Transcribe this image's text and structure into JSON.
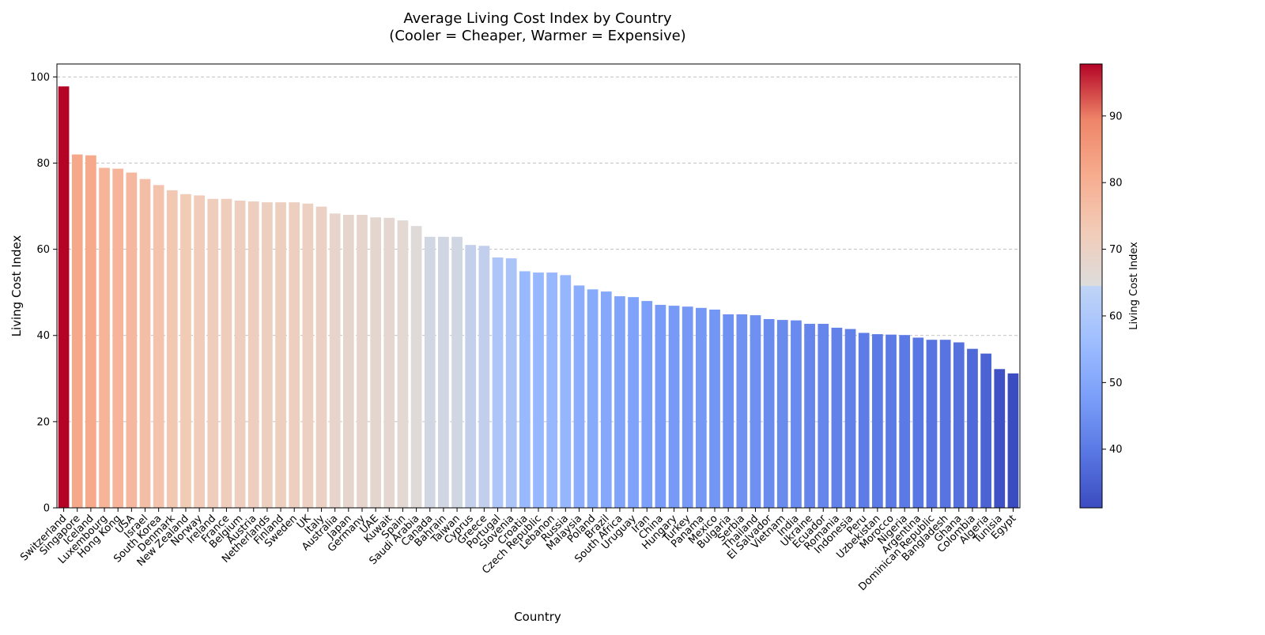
{
  "colors": {
    "cool": "#3b4cc0",
    "mid": "#dddcdc",
    "warm": "#b40426",
    "grid": "#b0b0b0"
  },
  "chart_data": {
    "type": "bar",
    "title_line1": "Average Living Cost Index by Country",
    "title_line2": "(Cooler = Cheaper, Warmer = Expensive)",
    "xlabel": "Country",
    "ylabel": "Living Cost Index",
    "colorbar_label": "Living Cost Index",
    "ylim": [
      0,
      103
    ],
    "yticks": [
      0,
      20,
      40,
      60,
      80,
      100
    ],
    "colorbar_range": [
      31.2,
      97.8
    ],
    "colorbar_ticks": [
      40,
      50,
      60,
      70,
      80,
      90
    ],
    "grid": "y-dashed",
    "categories": [
      "Switzerland",
      "Singapore",
      "Iceland",
      "Luxembourg",
      "Hong Kong",
      "USA",
      "Israel",
      "South Korea",
      "Denmark",
      "New Zealand",
      "Norway",
      "Ireland",
      "France",
      "Belgium",
      "Austria",
      "Netherlands",
      "Finland",
      "Sweden",
      "UK",
      "Italy",
      "Australia",
      "Japan",
      "Germany",
      "UAE",
      "Kuwait",
      "Spain",
      "Saudi Arabia",
      "Canada",
      "Bahrain",
      "Taiwan",
      "Cyprus",
      "Greece",
      "Portugal",
      "Slovenia",
      "Croatia",
      "Czech Republic",
      "Lebanon",
      "Russia",
      "Malaysia",
      "Poland",
      "Brazil",
      "South Africa",
      "Uruguay",
      "Iran",
      "China",
      "Hungary",
      "Turkey",
      "Panama",
      "Mexico",
      "Bulgaria",
      "Serbia",
      "Thailand",
      "El Salvador",
      "Vietnam",
      "India",
      "Ukraine",
      "Ecuador",
      "Romania",
      "Indonesia",
      "Peru",
      "Uzbekistan",
      "Morocco",
      "Nigeria",
      "Argentina",
      "Dominican Republic",
      "Bangladesh",
      "Ghana",
      "Colombia",
      "Algeria",
      "Tunisia",
      "Egypt"
    ],
    "values": [
      97.8,
      82.0,
      81.8,
      78.9,
      78.7,
      77.8,
      76.3,
      74.9,
      73.7,
      72.8,
      72.5,
      71.7,
      71.7,
      71.3,
      71.1,
      70.9,
      70.9,
      70.9,
      70.6,
      69.9,
      68.3,
      68.0,
      68.0,
      67.4,
      67.3,
      66.7,
      65.4,
      62.9,
      62.9,
      62.9,
      61.0,
      60.8,
      58.1,
      57.9,
      54.9,
      54.6,
      54.6,
      54.0,
      51.6,
      50.7,
      50.2,
      49.1,
      48.9,
      48.0,
      47.1,
      46.9,
      46.7,
      46.4,
      46.0,
      44.9,
      44.9,
      44.7,
      43.8,
      43.6,
      43.5,
      42.7,
      42.7,
      41.8,
      41.5,
      40.6,
      40.3,
      40.2,
      40.1,
      39.5,
      39.0,
      39.0,
      38.4,
      36.9,
      35.8,
      32.2,
      31.2
    ]
  }
}
